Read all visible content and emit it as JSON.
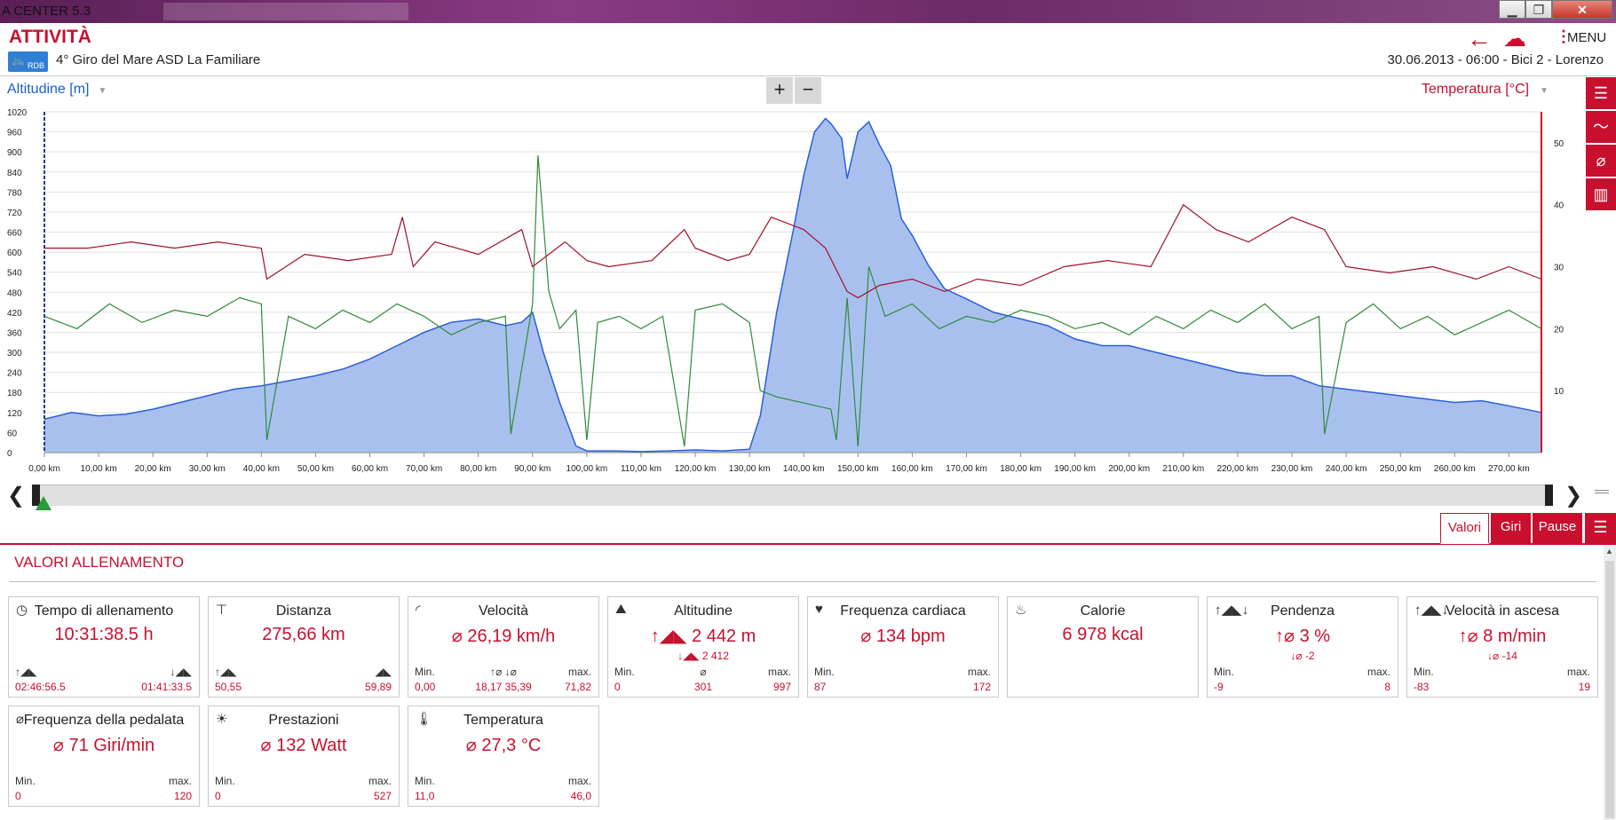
{
  "window": {
    "title": "A CENTER 5.3",
    "min": "▁",
    "max": "❐",
    "close": "✕"
  },
  "header": {
    "app_title": "ATTIVITÀ",
    "badge": "RDB",
    "activity_title": "4° Giro del Mare ASD La Familiare",
    "menu_label": "MENU",
    "date": "30.06.2013",
    "time": "06:00",
    "bike": "Bici 2",
    "user": "Lorenzo",
    "meta_line": "30.06.2013  -  06:00  -  Bici 2  -  Lorenzo"
  },
  "chart_controls": {
    "left_axis_label": "Altitudine [m]",
    "right_axis_label": "Temperatura [°C]",
    "zoom_in": "+",
    "zoom_out": "−"
  },
  "side_buttons": [
    "list-icon",
    "line-chart-icon",
    "average-icon",
    "bar-chart-icon"
  ],
  "colors": {
    "accent": "#c8102e",
    "altitude_fill": "#a9c0ef",
    "altitude_line": "#2a5fd8",
    "speed_line": "#2e8b3a",
    "hr_line": "#a0102a"
  },
  "chart_data": {
    "type": "line",
    "x_unit": "km",
    "x_ticks": [
      "0,00 km",
      "10,00 km",
      "20,00 km",
      "30,00 km",
      "40,00 km",
      "50,00 km",
      "60,00 km",
      "70,00 km",
      "80,00 km",
      "90,00 km",
      "100,00 km",
      "110,00 km",
      "120,00 km",
      "130,00 km",
      "140,00 km",
      "150,00 km",
      "160,00 km",
      "170,00 km",
      "180,00 km",
      "190,00 km",
      "200,00 km",
      "210,00 km",
      "220,00 km",
      "230,00 km",
      "240,00 km",
      "250,00 km",
      "260,00 km",
      "270,00 km"
    ],
    "xlim": [
      0,
      276
    ],
    "ylim_left": [
      0,
      1020
    ],
    "y_ticks_left": [
      0,
      60,
      120,
      180,
      240,
      300,
      360,
      420,
      480,
      540,
      600,
      660,
      720,
      780,
      840,
      900,
      960,
      1020
    ],
    "ylim_right": [
      0,
      55
    ],
    "y_ticks_right": [
      10,
      20,
      30,
      40,
      50
    ],
    "grid": true,
    "series": [
      {
        "name": "Altitudine [m]",
        "axis": "left",
        "style": "area",
        "x": [
          0,
          5,
          10,
          15,
          20,
          25,
          30,
          35,
          40,
          45,
          50,
          55,
          60,
          65,
          70,
          75,
          80,
          85,
          88,
          90,
          92,
          95,
          98,
          100,
          105,
          110,
          115,
          120,
          125,
          130,
          132,
          135,
          138,
          140,
          142,
          144,
          145,
          147,
          148,
          150,
          152,
          154,
          156,
          158,
          160,
          163,
          166,
          170,
          175,
          180,
          185,
          190,
          195,
          200,
          205,
          210,
          215,
          220,
          225,
          230,
          235,
          240,
          245,
          250,
          255,
          260,
          265,
          270,
          276
        ],
        "y": [
          100,
          120,
          110,
          115,
          130,
          150,
          170,
          190,
          200,
          215,
          230,
          250,
          280,
          320,
          360,
          390,
          400,
          380,
          390,
          420,
          300,
          150,
          20,
          5,
          5,
          3,
          5,
          8,
          5,
          10,
          110,
          420,
          660,
          830,
          960,
          1000,
          985,
          940,
          820,
          960,
          990,
          920,
          860,
          700,
          650,
          560,
          490,
          460,
          420,
          400,
          380,
          340,
          320,
          320,
          300,
          280,
          260,
          240,
          230,
          230,
          200,
          190,
          180,
          170,
          160,
          150,
          155,
          140,
          120
        ]
      },
      {
        "name": "Velocità [km/h]",
        "axis": "right",
        "style": "line",
        "x": [
          0,
          6,
          12,
          18,
          24,
          30,
          36,
          40,
          41,
          45,
          50,
          55,
          60,
          65,
          70,
          75,
          80,
          85,
          86,
          90,
          91,
          93,
          95,
          98,
          100,
          102,
          106,
          110,
          114,
          118,
          120,
          125,
          130,
          132,
          135,
          140,
          145,
          146,
          148,
          150,
          152,
          155,
          160,
          165,
          170,
          175,
          180,
          185,
          190,
          195,
          200,
          205,
          210,
          215,
          220,
          225,
          230,
          235,
          236,
          240,
          245,
          250,
          255,
          260,
          265,
          270,
          276
        ],
        "y": [
          22,
          20,
          24,
          21,
          23,
          22,
          25,
          24,
          2,
          22,
          20,
          23,
          21,
          24,
          22,
          19,
          21,
          22,
          3,
          24,
          48,
          26,
          20,
          23,
          2,
          21,
          22,
          20,
          22,
          1,
          23,
          24,
          21,
          10,
          9,
          8,
          7,
          2,
          25,
          1,
          30,
          22,
          24,
          20,
          22,
          21,
          23,
          22,
          20,
          21,
          19,
          22,
          20,
          23,
          21,
          24,
          20,
          22,
          3,
          21,
          24,
          20,
          22,
          19,
          21,
          23,
          20
        ]
      },
      {
        "name": "Frequenza cardiaca [bpm]",
        "axis": "right",
        "style": "line",
        "x": [
          0,
          8,
          16,
          24,
          32,
          40,
          41,
          48,
          56,
          64,
          66,
          68,
          72,
          80,
          88,
          90,
          96,
          100,
          104,
          112,
          118,
          120,
          126,
          130,
          134,
          140,
          144,
          148,
          150,
          154,
          160,
          166,
          172,
          180,
          188,
          196,
          204,
          210,
          216,
          222,
          230,
          236,
          240,
          248,
          256,
          264,
          270,
          276
        ],
        "y": [
          33,
          33,
          34,
          33,
          34,
          33,
          28,
          32,
          31,
          32,
          38,
          30,
          34,
          32,
          36,
          30,
          34,
          31,
          30,
          31,
          36,
          33,
          31,
          32,
          38,
          36,
          33,
          26,
          25,
          27,
          28,
          26,
          28,
          27,
          30,
          31,
          30,
          40,
          36,
          34,
          38,
          36,
          30,
          29,
          30,
          28,
          30,
          28
        ]
      }
    ]
  },
  "scrub": {
    "prev": "❮",
    "next": "❯"
  },
  "tabs": {
    "valori": "Valori",
    "giri": "Giri",
    "pause": "Pause"
  },
  "section_title": "VALORI ALLENAMENTO",
  "cards": [
    {
      "title": "Tempo di allenamento",
      "icon": "clock-icon",
      "glyph": "◷",
      "main": "10:31:38.5 h",
      "sub": "",
      "left_label": "↑◢◣",
      "right_label": "↓◢◣",
      "left_value": "02:46:56.5",
      "right_value": "01:41:33.5"
    },
    {
      "title": "Distanza",
      "icon": "signpost-icon",
      "glyph": "⊤",
      "main": "275,66 km",
      "sub": "",
      "left_label": "↑◢◣",
      "right_label": "◢◣",
      "left_value": "50,55",
      "right_value": "59,89"
    },
    {
      "title": "Velocità",
      "icon": "speedometer-icon",
      "glyph": "◜",
      "main": "⌀ 26,19 km/h",
      "sub": "",
      "left_label": "Min.",
      "mid_label": "↑⌀     ↓⌀",
      "right_label": "max.",
      "left_value": "0,00",
      "mid_value": "18,17     35,39",
      "right_value": "71,82"
    },
    {
      "title": "Altitudine",
      "icon": "mountain-icon",
      "glyph": "⛰",
      "main": "↑◢◣ 2 442 m",
      "sub": "↓◢◣  2 412",
      "left_label": "Min.",
      "mid_label": "⌀",
      "right_label": "max.",
      "left_value": "0",
      "mid_value": "301",
      "right_value": "997"
    },
    {
      "title": "Frequenza cardiaca",
      "icon": "heart-icon",
      "glyph": "♥",
      "main": "⌀ 134 bpm",
      "sub": "",
      "left_label": "Min.",
      "right_label": "max.",
      "left_value": "87",
      "right_value": "172"
    },
    {
      "title": "Calorie",
      "icon": "flame-icon",
      "glyph": "♨",
      "main": "6 978 kcal",
      "sub": "",
      "left_label": "",
      "right_label": "",
      "left_value": "",
      "right_value": ""
    },
    {
      "title": "Pendenza",
      "icon": "slope-icon",
      "glyph": "↑◢◣↓",
      "main": "↑⌀ 3 %",
      "sub": "↓⌀  -2",
      "left_label": "Min.",
      "right_label": "max.",
      "left_value": "-9",
      "right_value": "8"
    },
    {
      "title": "Velocità in ascesa",
      "icon": "climb-speed-icon",
      "glyph": "↑◢◣↓",
      "main": "↑⌀ 8 m/min",
      "sub": "↓⌀  -14",
      "left_label": "Min.",
      "right_label": "max.",
      "left_value": "-83",
      "right_value": "19"
    },
    {
      "title": "Frequenza della pedalata",
      "icon": "cadence-icon",
      "glyph": "⌀",
      "main": "⌀ 71 Giri/min",
      "sub": "",
      "left_label": "Min.",
      "right_label": "max.",
      "left_value": "0",
      "right_value": "120"
    },
    {
      "title": "Prestazioni",
      "icon": "power-icon",
      "glyph": "☀",
      "main": "⌀ 132 Watt",
      "sub": "",
      "left_label": "Min.",
      "right_label": "max.",
      "left_value": "0",
      "right_value": "527"
    },
    {
      "title": "Temperatura",
      "icon": "thermometer-icon",
      "glyph": "🌡",
      "main": "⌀ 27,3 °C",
      "sub": "",
      "left_label": "Min.",
      "right_label": "max.",
      "left_value": "11,0",
      "right_value": "46,0"
    }
  ]
}
